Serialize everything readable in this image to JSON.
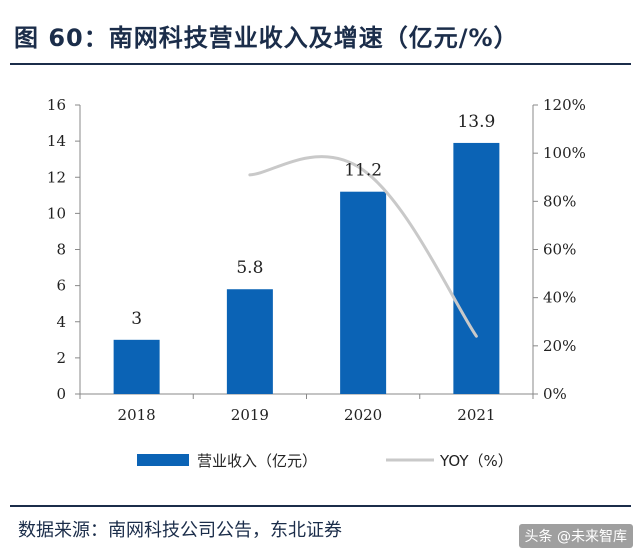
{
  "header": {
    "title": "图 60：南网科技营业收入及增速（亿元/%）"
  },
  "footer": {
    "source": "数据来源：南网科技公司公告，东北证券",
    "watermark": "头条 @未来智库"
  },
  "chart_data": {
    "type": "bar",
    "title": "南网科技营业收入及增速（亿元/%）",
    "categories": [
      "2018",
      "2019",
      "2020",
      "2021"
    ],
    "series": [
      {
        "name": "营业收入（亿元）",
        "kind": "bar",
        "axis": "left",
        "values": [
          3,
          5.8,
          11.2,
          13.9
        ],
        "labels": [
          "3",
          "5.8",
          "11.2",
          "13.9"
        ]
      },
      {
        "name": "YOY（%）",
        "kind": "line",
        "axis": "right",
        "values": [
          null,
          91,
          93,
          24
        ]
      }
    ],
    "ylim": [
      0,
      16
    ],
    "yticks": [
      "0",
      "2",
      "4",
      "6",
      "8",
      "10",
      "12",
      "14",
      "16"
    ],
    "y2lim": [
      0,
      120
    ],
    "y2ticks": [
      "0%",
      "20%",
      "40%",
      "60%",
      "80%",
      "100%",
      "120%"
    ],
    "legend_position": "bottom",
    "colors": {
      "bar": "#0b63b5",
      "line": "#c9c9c9",
      "axis": "#888888",
      "text": "#1b2d4a"
    }
  }
}
